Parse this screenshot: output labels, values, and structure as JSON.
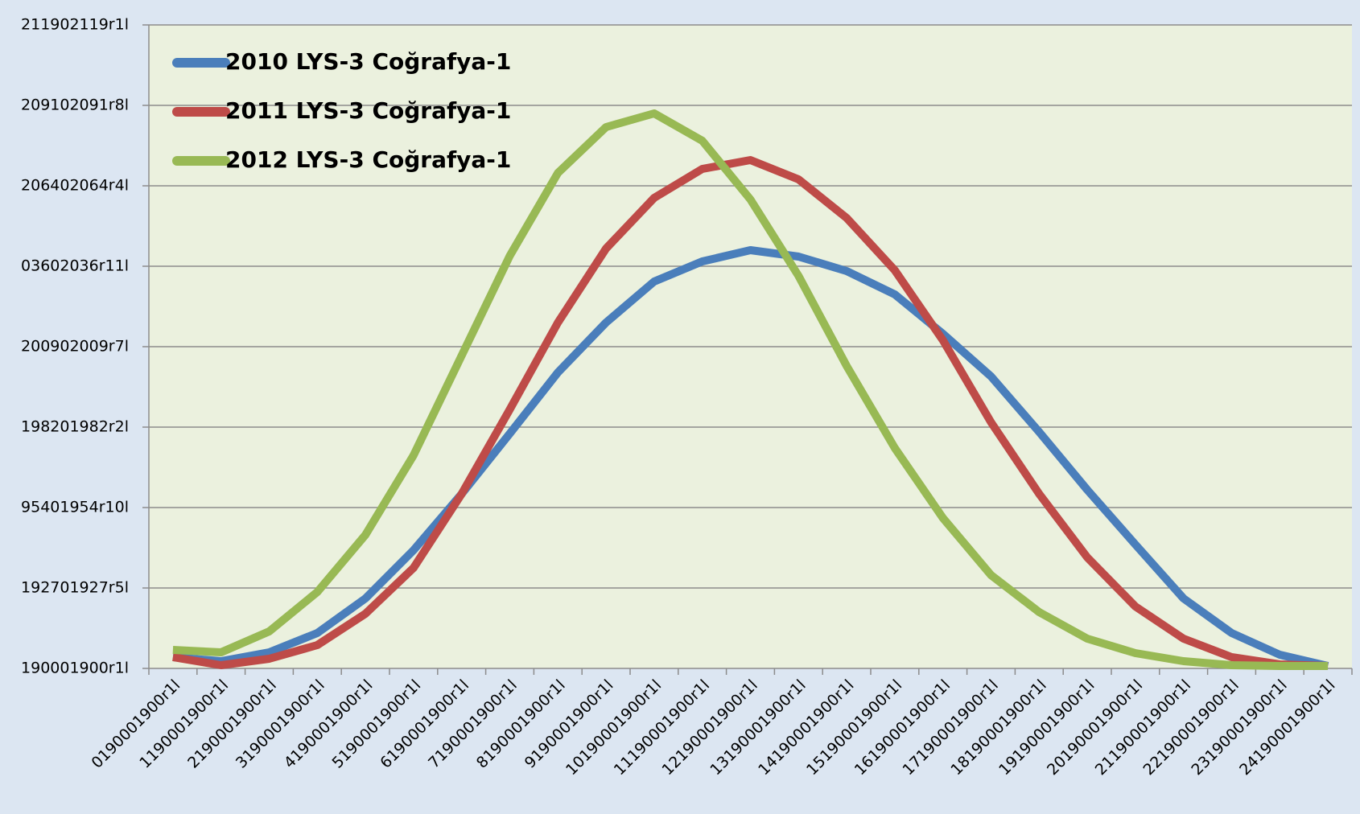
{
  "chart_data": {
    "type": "line",
    "categories": [
      "0190001900r1l",
      "1190001900r1l",
      "2190001900r1l",
      "3190001900r1l",
      "4190001900r1l",
      "5190001900r1l",
      "6190001900r1l",
      "7190001900r1l",
      "8190001900r1l",
      "9190001900r1l",
      "10190001900r1l",
      "11190001900r1l",
      "12190001900r1l",
      "13190001900r1l",
      "14190001900r1l",
      "15190001900r1l",
      "16190001900r1l",
      "17190001900r1l",
      "18190001900r1l",
      "19190001900r1l",
      "20190001900r1l",
      "21190001900r1l",
      "22190001900r1l",
      "23190001900r1l",
      "24190001900r1l"
    ],
    "series": [
      {
        "name": "2010 LYS-3 Coğrafya-1",
        "color": "#4a7ebb",
        "values": [
          0.14,
          0.09,
          0.2,
          0.44,
          0.87,
          1.47,
          2.17,
          2.92,
          3.68,
          4.3,
          4.81,
          5.06,
          5.2,
          5.12,
          4.94,
          4.65,
          4.16,
          3.63,
          2.94,
          2.22,
          1.54,
          0.87,
          0.44,
          0.17,
          0.03
        ]
      },
      {
        "name": "2011 LYS-3 Coğrafya-1",
        "color": "#be4b48",
        "values": [
          0.14,
          0.04,
          0.12,
          0.29,
          0.68,
          1.25,
          2.17,
          3.22,
          4.3,
          5.22,
          5.85,
          6.21,
          6.32,
          6.08,
          5.6,
          4.95,
          4.08,
          3.06,
          2.17,
          1.38,
          0.77,
          0.37,
          0.14,
          0.05,
          0.03
        ]
      },
      {
        "name": "2012 LYS-3 Coğrafya-1",
        "color": "#98b954",
        "values": [
          0.23,
          0.2,
          0.46,
          0.95,
          1.66,
          2.65,
          3.89,
          5.13,
          6.16,
          6.73,
          6.9,
          6.56,
          5.83,
          4.88,
          3.76,
          2.74,
          1.87,
          1.16,
          0.7,
          0.37,
          0.19,
          0.09,
          0.04,
          0.03,
          0.03
        ]
      }
    ],
    "ylim": [
      0,
      8
    ],
    "yticks": [
      {
        "value": 0,
        "label": "190001900r1l"
      },
      {
        "value": 1,
        "label": "192701927r5l"
      },
      {
        "value": 2,
        "label": "95401954r10l"
      },
      {
        "value": 3,
        "label": "198201982r2l"
      },
      {
        "value": 4,
        "label": "200902009r7l"
      },
      {
        "value": 5,
        "label": "03602036r11l"
      },
      {
        "value": 6,
        "label": "206402064r4l"
      },
      {
        "value": 7,
        "label": "209102091r8l"
      },
      {
        "value": 8,
        "label": "211902119r1l"
      }
    ],
    "grid": true,
    "legend": "top-left"
  }
}
